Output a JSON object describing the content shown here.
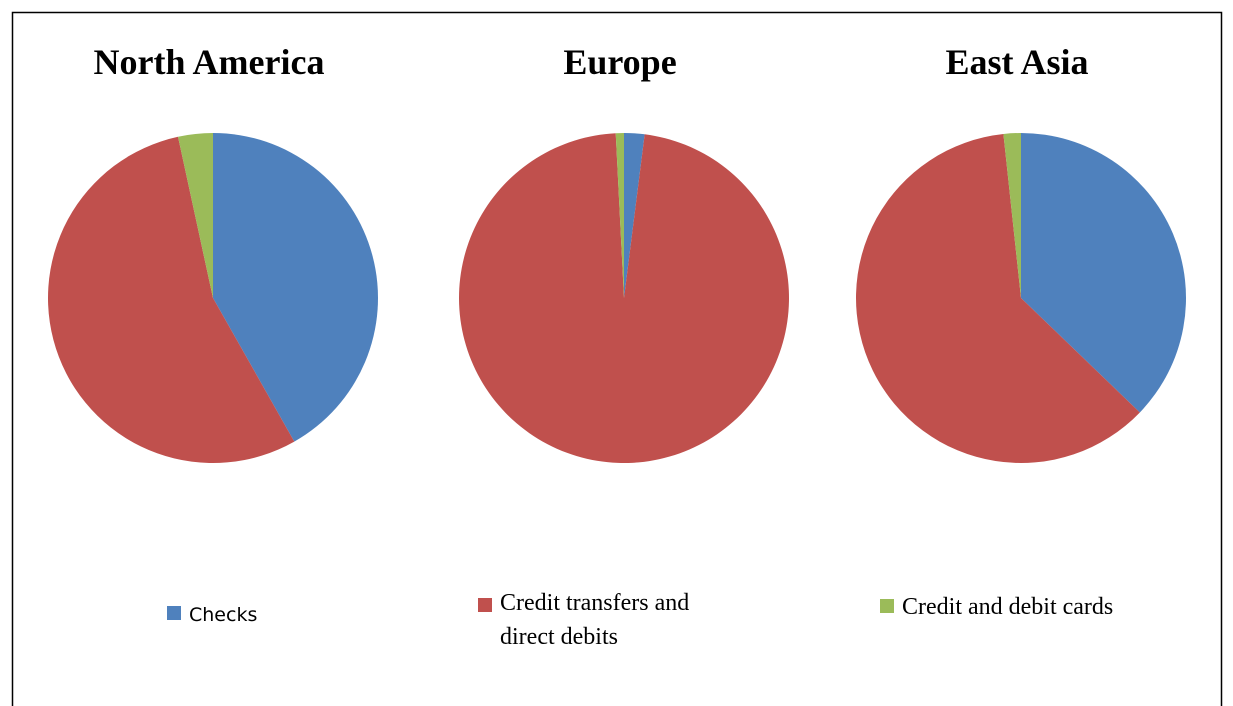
{
  "chart_data": [
    {
      "type": "pie",
      "title": "North America",
      "values": [
        41.8,
        54.8,
        3.4
      ]
    },
    {
      "type": "pie",
      "title": "Europe",
      "values": [
        2.0,
        97.2,
        0.8
      ]
    },
    {
      "type": "pie",
      "title": "East Asia",
      "values": [
        37.2,
        61.1,
        1.7
      ]
    }
  ],
  "legend": {
    "series": [
      {
        "name": "Checks",
        "color": "#4f81bd"
      },
      {
        "name": "Credit transfers and direct debits",
        "color": "#c0504d"
      },
      {
        "name": "Credit and debit cards",
        "color": "#9bbb59"
      }
    ]
  }
}
